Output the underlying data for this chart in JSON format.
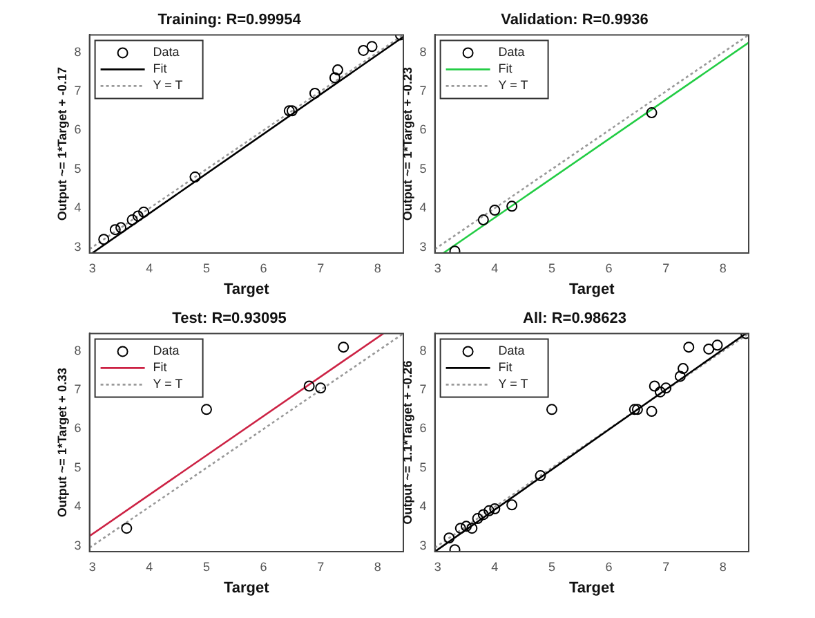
{
  "chart_data": [
    {
      "type": "scatter",
      "title": "Training: R=0.99954",
      "xlabel": "Target",
      "ylabel": "Output ~= 1*Target + -0.17",
      "xlim": [
        2.95,
        8.45
      ],
      "ylim": [
        2.85,
        8.45
      ],
      "xticks": [
        3,
        4,
        5,
        6,
        7,
        8
      ],
      "yticks": [
        3,
        4,
        5,
        6,
        7,
        8
      ],
      "grid": false,
      "legend": "top left",
      "series": [
        {
          "name": "Data",
          "type": "scatter",
          "marker": "circle",
          "color": "#000000",
          "x": [
            3.2,
            3.4,
            3.5,
            3.7,
            3.8,
            3.9,
            4.8,
            6.45,
            6.5,
            6.9,
            7.25,
            7.3,
            7.75,
            7.9,
            8.4
          ],
          "values": [
            3.2,
            3.45,
            3.5,
            3.7,
            3.8,
            3.9,
            4.8,
            6.5,
            6.5,
            6.95,
            7.35,
            7.55,
            8.05,
            8.15,
            8.45
          ]
        },
        {
          "name": "Fit",
          "type": "line",
          "color": "#000000",
          "line_style": "solid",
          "x": [
            3.0,
            8.45
          ],
          "values": [
            2.85,
            8.4
          ]
        },
        {
          "name": "Y = T",
          "type": "line",
          "color": "#999999",
          "line_style": "dotted",
          "x": [
            2.95,
            8.45
          ],
          "values": [
            2.95,
            8.45
          ]
        }
      ]
    },
    {
      "type": "scatter",
      "title": "Validation: R=0.9936",
      "xlabel": "Target",
      "ylabel": "Output ~= 1*Target + -0.23",
      "xlim": [
        2.95,
        8.45
      ],
      "ylim": [
        2.85,
        8.45
      ],
      "xticks": [
        3,
        4,
        5,
        6,
        7,
        8
      ],
      "yticks": [
        3,
        4,
        5,
        6,
        7,
        8
      ],
      "grid": false,
      "legend": "top left",
      "series": [
        {
          "name": "Data",
          "type": "scatter",
          "marker": "circle",
          "color": "#000000",
          "x": [
            3.3,
            3.8,
            4.0,
            4.3,
            6.75
          ],
          "values": [
            2.9,
            3.7,
            3.95,
            4.05,
            6.45
          ]
        },
        {
          "name": "Fit",
          "type": "line",
          "color": "#22cc44",
          "line_style": "solid",
          "x": [
            3.1,
            8.45
          ],
          "values": [
            2.85,
            8.25
          ]
        },
        {
          "name": "Y = T",
          "type": "line",
          "color": "#999999",
          "line_style": "dotted",
          "x": [
            2.95,
            8.45
          ],
          "values": [
            2.95,
            8.45
          ]
        }
      ]
    },
    {
      "type": "scatter",
      "title": "Test: R=0.93095",
      "xlabel": "Target",
      "ylabel": "Output ~= 1*Target + 0.33",
      "xlim": [
        2.95,
        8.45
      ],
      "ylim": [
        2.85,
        8.45
      ],
      "xticks": [
        3,
        4,
        5,
        6,
        7,
        8
      ],
      "yticks": [
        3,
        4,
        5,
        6,
        7,
        8
      ],
      "grid": false,
      "legend": "top left",
      "series": [
        {
          "name": "Data",
          "type": "scatter",
          "marker": "circle",
          "color": "#000000",
          "x": [
            3.6,
            5.0,
            6.8,
            7.0,
            7.4
          ],
          "values": [
            3.45,
            6.5,
            7.1,
            7.05,
            8.1
          ]
        },
        {
          "name": "Fit",
          "type": "line",
          "color": "#cc2244",
          "line_style": "solid",
          "x": [
            2.95,
            8.1
          ],
          "values": [
            3.25,
            8.45
          ]
        },
        {
          "name": "Y = T",
          "type": "line",
          "color": "#999999",
          "line_style": "dotted",
          "x": [
            2.95,
            8.45
          ],
          "values": [
            2.95,
            8.45
          ]
        }
      ]
    },
    {
      "type": "scatter",
      "title": "All: R=0.98623",
      "xlabel": "Target",
      "ylabel": "Output ~= 1.1*Target + -0.26",
      "xlim": [
        2.95,
        8.45
      ],
      "ylim": [
        2.85,
        8.45
      ],
      "xticks": [
        3,
        4,
        5,
        6,
        7,
        8
      ],
      "yticks": [
        3,
        4,
        5,
        6,
        7,
        8
      ],
      "grid": false,
      "legend": "top left",
      "series": [
        {
          "name": "Data",
          "type": "scatter",
          "marker": "circle",
          "color": "#000000",
          "x": [
            3.2,
            3.3,
            3.4,
            3.5,
            3.6,
            3.7,
            3.8,
            3.9,
            4.0,
            4.3,
            4.8,
            5.0,
            6.45,
            6.5,
            6.75,
            6.8,
            6.9,
            7.0,
            7.25,
            7.3,
            7.4,
            7.75,
            7.9,
            8.4
          ],
          "values": [
            3.2,
            2.9,
            3.45,
            3.5,
            3.45,
            3.7,
            3.8,
            3.9,
            3.95,
            4.05,
            4.8,
            6.5,
            6.5,
            6.5,
            6.45,
            7.1,
            6.95,
            7.05,
            7.35,
            7.55,
            8.1,
            8.05,
            8.15,
            8.45
          ]
        },
        {
          "name": "Fit",
          "type": "line",
          "color": "#000000",
          "line_style": "solid",
          "x": [
            2.95,
            8.4
          ],
          "values": [
            2.85,
            8.45
          ]
        },
        {
          "name": "Y = T",
          "type": "line",
          "color": "#999999",
          "line_style": "dotted",
          "x": [
            2.95,
            8.45
          ],
          "values": [
            2.95,
            8.45
          ]
        }
      ]
    }
  ]
}
